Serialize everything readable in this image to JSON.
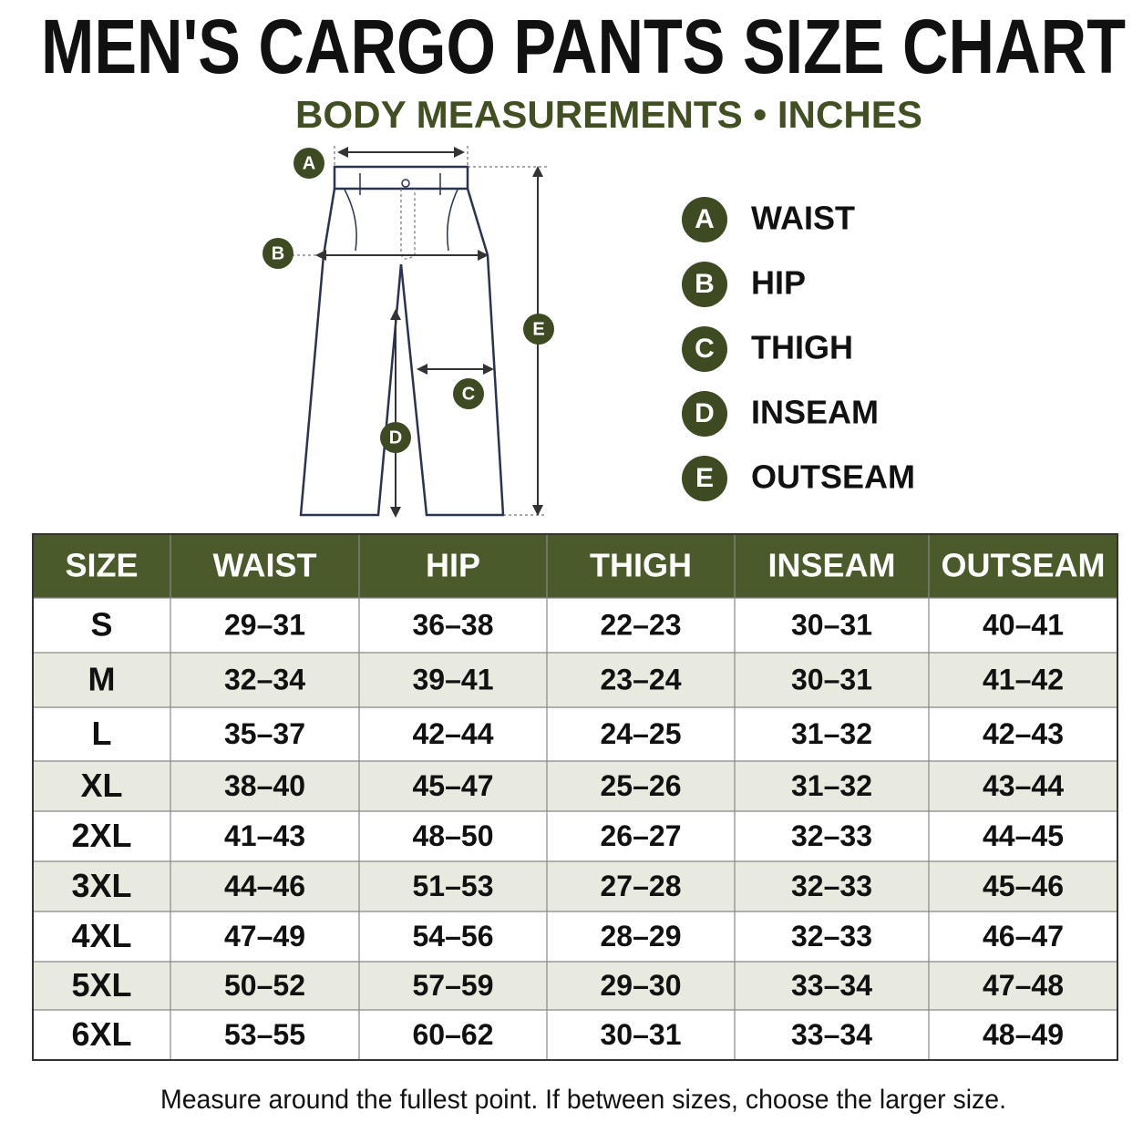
{
  "header": {
    "title": "MEN'S CARGO PANTS SIZE CHART",
    "subtitle": "BODY MEASUREMENTS • INCHES"
  },
  "legend": {
    "items": [
      {
        "letter": "A",
        "label": "WAIST"
      },
      {
        "letter": "B",
        "label": "HIP"
      },
      {
        "letter": "C",
        "label": "THIGH"
      },
      {
        "letter": "D",
        "label": "INSEAM"
      },
      {
        "letter": "E",
        "label": "OUTSEAM"
      }
    ]
  },
  "table": {
    "columns": [
      "SIZE",
      "WAIST",
      "HIP",
      "THIGH",
      "INSEAM",
      "OUTSEAM"
    ],
    "rows": [
      [
        "S",
        "29–31",
        "36–38",
        "22–23",
        "30–31",
        "40–41"
      ],
      [
        "M",
        "32–34",
        "39–41",
        "23–24",
        "30–31",
        "41–42"
      ],
      [
        "L",
        "35–37",
        "42–44",
        "24–25",
        "31–32",
        "42–43"
      ],
      [
        "XL",
        "38–40",
        "45–47",
        "25–26",
        "31–32",
        "43–44"
      ],
      [
        "2XL",
        "41–43",
        "48–50",
        "26–27",
        "32–33",
        "44–45"
      ],
      [
        "3XL",
        "44–46",
        "51–53",
        "27–28",
        "32–33",
        "45–46"
      ],
      [
        "4XL",
        "47–49",
        "54–56",
        "28–29",
        "32–33",
        "46–47"
      ],
      [
        "5XL",
        "50–52",
        "57–59",
        "29–30",
        "33–34",
        "47–48"
      ],
      [
        "6XL",
        "53–55",
        "60–62",
        "30–31",
        "33–34",
        "48–49"
      ]
    ]
  },
  "footer": {
    "note": "Measure around the fullest point. If between sizes, choose the larger size."
  }
}
